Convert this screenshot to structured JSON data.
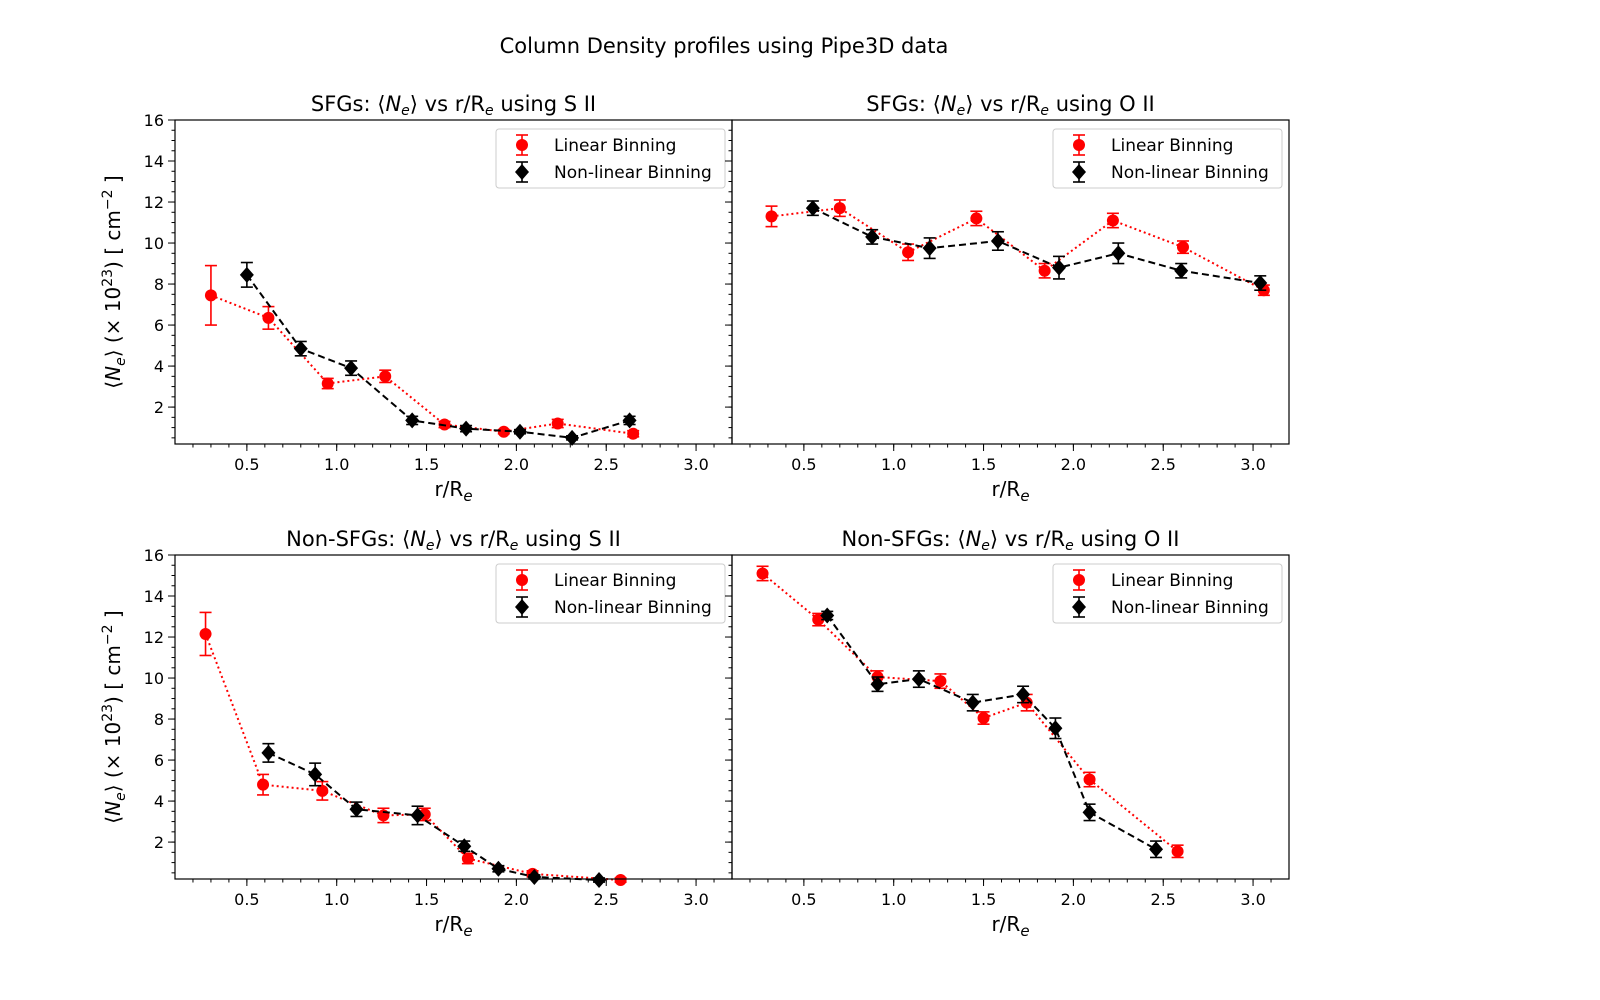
{
  "suptitle": "Column Density profiles using Pipe3D data",
  "shared": {
    "xlabel": "r/R",
    "xlabel_sub": "e",
    "ylabel": "⟨N_e⟩ (×10^23) [ cm^-2 ]",
    "xticks": [
      "0.5",
      "1.0",
      "1.5",
      "2.0",
      "2.5",
      "3.0"
    ],
    "yticks": [
      "2",
      "4",
      "6",
      "8",
      "10",
      "12",
      "14",
      "16"
    ],
    "legend": [
      "Linear Binning",
      "Non-linear Binning"
    ]
  },
  "colors": {
    "linear": "#ff0000",
    "nonlinear": "#000000"
  },
  "chart_data": [
    {
      "type": "line",
      "title": "SFGs: ⟨N_e⟩ vs r/R_e using S II",
      "xlim": [
        0.1,
        3.2
      ],
      "ylim": [
        0.2,
        16
      ],
      "series": [
        {
          "name": "Linear Binning",
          "x": [
            0.3,
            0.62,
            0.95,
            1.27,
            1.6,
            1.93,
            2.23,
            2.65
          ],
          "y": [
            7.45,
            6.35,
            3.15,
            3.5,
            1.15,
            0.8,
            1.2,
            0.7
          ],
          "err": [
            1.45,
            0.55,
            0.25,
            0.3,
            0.15,
            0.1,
            0.2,
            0.15
          ]
        },
        {
          "name": "Non-linear Binning",
          "x": [
            0.5,
            0.8,
            1.08,
            1.42,
            1.72,
            2.02,
            2.31,
            2.63
          ],
          "y": [
            8.45,
            4.85,
            3.9,
            1.35,
            0.95,
            0.8,
            0.5,
            1.35
          ],
          "err": [
            0.6,
            0.35,
            0.35,
            0.2,
            0.15,
            0.1,
            0.1,
            0.2
          ]
        }
      ]
    },
    {
      "type": "line",
      "title": "SFGs: ⟨N_e⟩ vs r/R_e using O II",
      "xlim": [
        0.1,
        3.2
      ],
      "ylim": [
        0.2,
        16
      ],
      "series": [
        {
          "name": "Linear Binning",
          "x": [
            0.32,
            0.7,
            1.08,
            1.46,
            1.84,
            2.22,
            2.61,
            3.06
          ],
          "y": [
            11.3,
            11.7,
            9.55,
            11.2,
            8.65,
            11.1,
            9.8,
            7.7
          ],
          "err": [
            0.5,
            0.4,
            0.4,
            0.35,
            0.35,
            0.35,
            0.3,
            0.25
          ]
        },
        {
          "name": "Non-linear Binning",
          "x": [
            0.55,
            0.88,
            1.2,
            1.58,
            1.92,
            2.25,
            2.6,
            3.04
          ],
          "y": [
            11.7,
            10.3,
            9.75,
            10.1,
            8.8,
            9.5,
            8.65,
            8.05
          ],
          "err": [
            0.35,
            0.35,
            0.5,
            0.45,
            0.55,
            0.5,
            0.35,
            0.35
          ]
        }
      ]
    },
    {
      "type": "line",
      "title": "Non-SFGs: ⟨N_e⟩ vs r/R_e using S II",
      "xlim": [
        0.1,
        3.2
      ],
      "ylim": [
        0.2,
        16
      ],
      "series": [
        {
          "name": "Linear Binning",
          "x": [
            0.27,
            0.59,
            0.92,
            1.26,
            1.49,
            1.73,
            2.09,
            2.58
          ],
          "y": [
            12.15,
            4.8,
            4.5,
            3.3,
            3.35,
            1.2,
            0.45,
            0.15
          ],
          "err": [
            1.05,
            0.5,
            0.45,
            0.35,
            0.3,
            0.25,
            0.15,
            0.1
          ]
        },
        {
          "name": "Non-linear Binning",
          "x": [
            0.62,
            0.88,
            1.11,
            1.45,
            1.71,
            1.9,
            2.1,
            2.46
          ],
          "y": [
            6.35,
            5.3,
            3.6,
            3.3,
            1.8,
            0.7,
            0.3,
            0.15
          ],
          "err": [
            0.45,
            0.55,
            0.35,
            0.45,
            0.25,
            0.15,
            0.1,
            0.1
          ]
        }
      ]
    },
    {
      "type": "line",
      "title": "Non-SFGs: ⟨N_e⟩ vs r/R_e using O II",
      "xlim": [
        0.1,
        3.2
      ],
      "ylim": [
        0.2,
        16
      ],
      "series": [
        {
          "name": "Linear Binning",
          "x": [
            0.27,
            0.58,
            0.91,
            1.26,
            1.5,
            1.74,
            2.09,
            2.58
          ],
          "y": [
            15.1,
            12.85,
            10.05,
            9.85,
            8.05,
            8.8,
            5.05,
            1.55
          ],
          "err": [
            0.35,
            0.3,
            0.3,
            0.35,
            0.3,
            0.4,
            0.35,
            0.3
          ]
        },
        {
          "name": "Non-linear Binning",
          "x": [
            0.63,
            0.91,
            1.14,
            1.44,
            1.72,
            1.9,
            2.09,
            2.46
          ],
          "y": [
            13.05,
            9.7,
            9.95,
            8.8,
            9.2,
            7.55,
            3.45,
            1.65
          ],
          "err": [
            0.2,
            0.35,
            0.4,
            0.4,
            0.4,
            0.5,
            0.4,
            0.4
          ]
        }
      ]
    }
  ]
}
